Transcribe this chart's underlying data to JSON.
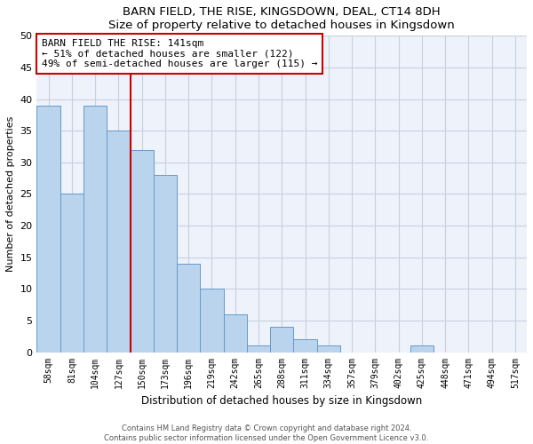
{
  "title": "BARN FIELD, THE RISE, KINGSDOWN, DEAL, CT14 8DH",
  "subtitle": "Size of property relative to detached houses in Kingsdown",
  "xlabel": "Distribution of detached houses by size in Kingsdown",
  "ylabel": "Number of detached properties",
  "categories": [
    "58sqm",
    "81sqm",
    "104sqm",
    "127sqm",
    "150sqm",
    "173sqm",
    "196sqm",
    "219sqm",
    "242sqm",
    "265sqm",
    "288sqm",
    "311sqm",
    "334sqm",
    "357sqm",
    "379sqm",
    "402sqm",
    "425sqm",
    "448sqm",
    "471sqm",
    "494sqm",
    "517sqm"
  ],
  "values": [
    39,
    25,
    39,
    35,
    32,
    28,
    14,
    10,
    6,
    1,
    4,
    2,
    1,
    0,
    0,
    0,
    1,
    0,
    0,
    0,
    0
  ],
  "bar_color": "#bad4ed",
  "bar_edge_color": "#6699cc",
  "vline_x": 3.5,
  "vline_color": "#cc0000",
  "annotation_title": "BARN FIELD THE RISE: 141sqm",
  "annotation_line1": "← 51% of detached houses are smaller (122)",
  "annotation_line2": "49% of semi-detached houses are larger (115) →",
  "ylim": [
    0,
    50
  ],
  "yticks": [
    0,
    5,
    10,
    15,
    20,
    25,
    30,
    35,
    40,
    45,
    50
  ],
  "footer1": "Contains HM Land Registry data © Crown copyright and database right 2024.",
  "footer2": "Contains public sector information licensed under the Open Government Licence v3.0.",
  "bg_color": "#eef2fa",
  "grid_color": "#c8cfe0"
}
